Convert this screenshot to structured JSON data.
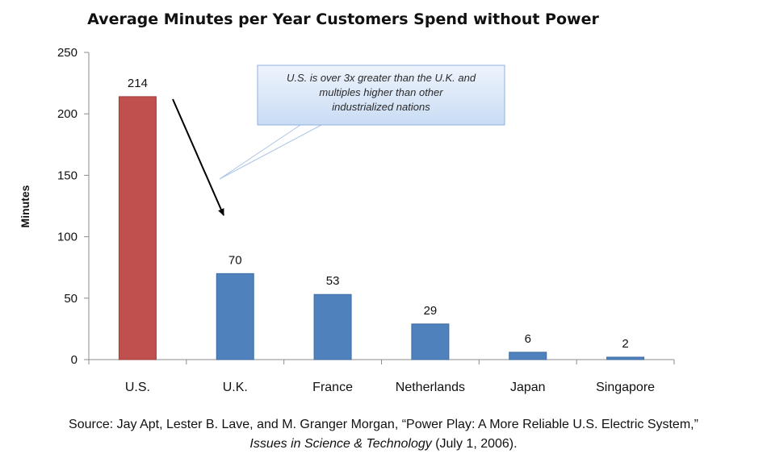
{
  "chart_data": {
    "type": "bar",
    "title": "Average Minutes per Year Customers Spend without Power",
    "ylabel": "Minutes",
    "xlabel": "",
    "categories": [
      "U.S.",
      "U.K.",
      "France",
      "Netherlands",
      "Japan",
      "Singapore"
    ],
    "values": [
      214,
      70,
      53,
      29,
      6,
      2
    ],
    "data_labels": [
      "214",
      "70",
      "53",
      "29",
      "6",
      "2"
    ],
    "ylim": [
      0,
      250
    ],
    "yticks": [
      0,
      50,
      100,
      150,
      200,
      250
    ],
    "grid": false,
    "legend": "none",
    "colors": {
      "highlight": "#C0504D",
      "bars": "#4F81BD",
      "axis": "#8c8c8c",
      "callout_fill": "#dbe7f7",
      "callout_border": "#8fb2e0"
    },
    "annotation": {
      "lines": [
        "U.S. is over 3x greater than the U.K. and",
        "multiples higher than other",
        "industrialized nations"
      ]
    }
  },
  "source": {
    "line1": "Source:  Jay Apt, Lester B. Lave, and M. Granger Morgan, “Power Play: A More Reliable U.S. Electric System,”",
    "line2_italic": "Issues in Science & Technology",
    "line2_rest": " (July 1, 2006)."
  }
}
